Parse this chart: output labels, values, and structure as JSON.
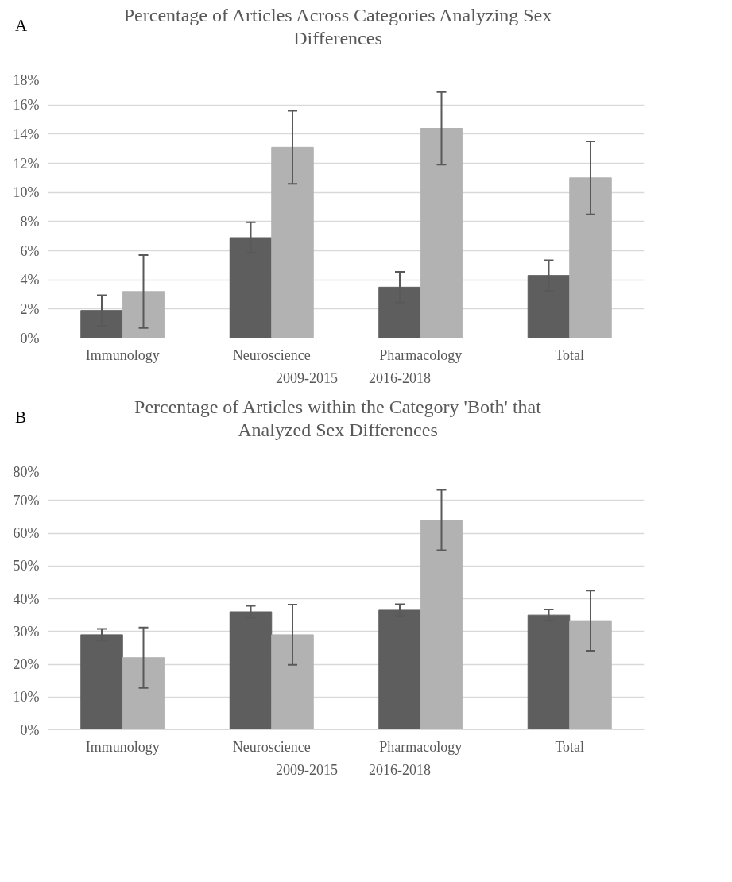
{
  "chart_data": [
    {
      "type": "bar",
      "title": "Percentage of Articles Across Categories Analyzing Sex Differences",
      "annotations": [
        "A"
      ],
      "categories": [
        "Immunology",
        "Neuroscience",
        "Pharmacology",
        "Total"
      ],
      "series": [
        {
          "name": "2009-2015",
          "color": "#5e5e5e",
          "values": [
            1.9,
            6.9,
            3.5,
            4.3
          ],
          "errors": [
            1.05,
            1.05,
            1.05,
            1.05
          ]
        },
        {
          "name": "2016-2018",
          "color": "#b2b2b2",
          "values": [
            3.2,
            13.1,
            14.4,
            11.0
          ],
          "errors": [
            2.5,
            2.5,
            2.5,
            2.5
          ]
        }
      ],
      "ylim": [
        0,
        18
      ],
      "yticks": [
        {
          "value": 0,
          "label": "0%"
        },
        {
          "value": 2,
          "label": "2%"
        },
        {
          "value": 4,
          "label": "4%"
        },
        {
          "value": 6,
          "label": "6%"
        },
        {
          "value": 8,
          "label": "8%"
        },
        {
          "value": 10,
          "label": "10%"
        },
        {
          "value": 12,
          "label": "12%"
        },
        {
          "value": 14,
          "label": "14%"
        },
        {
          "value": 16,
          "label": "16%"
        },
        {
          "value": 18,
          "label": "18%"
        }
      ],
      "grid": "y",
      "legend": "bottom"
    },
    {
      "type": "bar",
      "title": "Percentage of Articles within the Category 'Both' that Analyzed Sex Differences",
      "annotations": [
        "B"
      ],
      "categories": [
        "Immunology",
        "Neuroscience",
        "Pharmacology",
        "Total"
      ],
      "series": [
        {
          "name": "2009-2015",
          "color": "#5e5e5e",
          "values": [
            29,
            36,
            36.5,
            35
          ],
          "errors": [
            1.8,
            1.8,
            1.8,
            1.7
          ]
        },
        {
          "name": "2016-2018",
          "color": "#b2b2b2",
          "values": [
            22,
            29,
            64,
            33.3
          ],
          "errors": [
            9.2,
            9.2,
            9.2,
            9.2
          ]
        }
      ],
      "ylim": [
        0,
        80
      ],
      "yticks": [
        {
          "value": 0,
          "label": "0%"
        },
        {
          "value": 10,
          "label": "10%"
        },
        {
          "value": 20,
          "label": "20%"
        },
        {
          "value": 30,
          "label": "30%"
        },
        {
          "value": 40,
          "label": "40%"
        },
        {
          "value": 50,
          "label": "50%"
        },
        {
          "value": 60,
          "label": "60%"
        },
        {
          "value": 70,
          "label": "70%"
        },
        {
          "value": 80,
          "label": "80%"
        }
      ],
      "grid": "y",
      "legend": "bottom"
    }
  ]
}
